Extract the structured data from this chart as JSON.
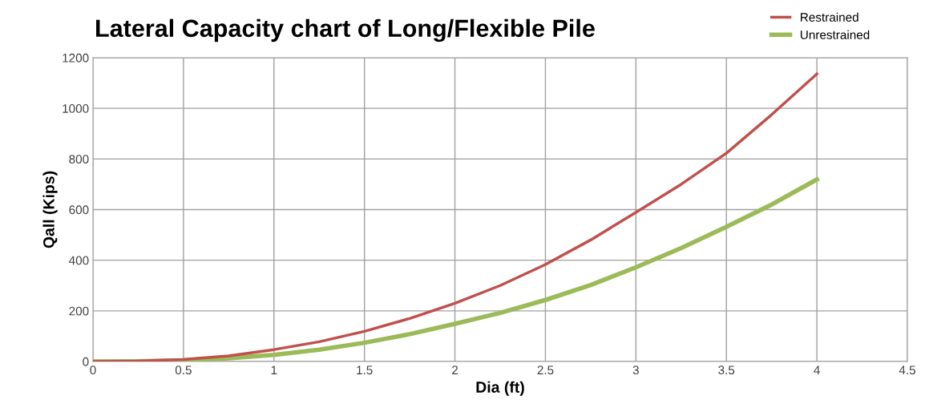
{
  "chart_data": {
    "type": "line",
    "title": "Lateral Capacity chart of Long/Flexible Pile",
    "xlabel": "Dia (ft)",
    "ylabel": "Qall (Kips)",
    "x": [
      0,
      0.25,
      0.5,
      0.75,
      1,
      1.25,
      1.5,
      1.75,
      2,
      2.25,
      2.5,
      2.75,
      3,
      3.25,
      3.5,
      3.75,
      4
    ],
    "series": [
      {
        "name": "Restrained",
        "color": "#c0504d",
        "values": [
          0,
          2,
          8,
          22,
          47,
          78,
          119,
          170,
          230,
          300,
          383,
          480,
          589,
          700,
          823,
          975,
          1136
        ]
      },
      {
        "name": "Unrestrained",
        "color": "#9bbb59",
        "values": [
          0,
          1,
          5,
          13,
          26,
          47,
          74,
          108,
          149,
          192,
          243,
          302,
          372,
          448,
          532,
          620,
          719
        ]
      }
    ],
    "xlim": [
      0,
      4.5
    ],
    "xticks": [
      0,
      0.5,
      1,
      1.5,
      2,
      2.5,
      3,
      3.5,
      4,
      4.5
    ],
    "ylim": [
      0,
      1200
    ],
    "yticks": [
      0,
      200,
      400,
      600,
      800,
      1000,
      1200
    ],
    "grid": true,
    "legend": "top right",
    "marker": "none",
    "line_style": "solid"
  }
}
